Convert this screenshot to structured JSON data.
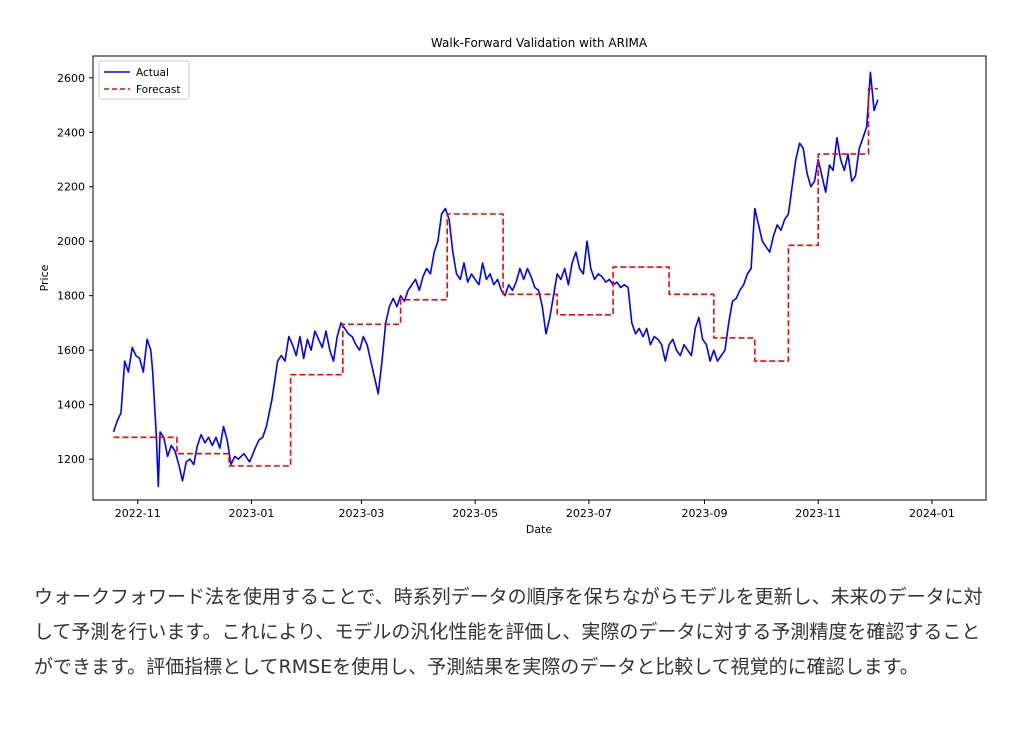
{
  "chart_data": {
    "type": "line",
    "title": "Walk-Forward Validation with ARIMA",
    "xlabel": "Date",
    "ylabel": "Price",
    "xlim": [
      "2022-10-08",
      "2024-01-30"
    ],
    "ylim": [
      1050,
      2680
    ],
    "yticks": [
      1200,
      1400,
      1600,
      1800,
      2000,
      2200,
      2400,
      2600
    ],
    "xticks": [
      {
        "date": "2022-11-01",
        "label": "2022-11"
      },
      {
        "date": "2023-01-01",
        "label": "2023-01"
      },
      {
        "date": "2023-03-01",
        "label": "2023-03"
      },
      {
        "date": "2023-05-01",
        "label": "2023-05"
      },
      {
        "date": "2023-07-01",
        "label": "2023-07"
      },
      {
        "date": "2023-09-01",
        "label": "2023-09"
      },
      {
        "date": "2023-11-01",
        "label": "2023-11"
      },
      {
        "date": "2024-01-01",
        "label": "2024-01"
      }
    ],
    "grid": false,
    "legend": "top-left",
    "series": [
      {
        "name": "Actual",
        "color": "#0000ff",
        "style": "solid",
        "points": [
          [
            "2022-10-19",
            1300
          ],
          [
            "2022-10-21",
            1340
          ],
          [
            "2022-10-23",
            1370
          ],
          [
            "2022-10-25",
            1560
          ],
          [
            "2022-10-27",
            1520
          ],
          [
            "2022-10-29",
            1610
          ],
          [
            "2022-10-31",
            1580
          ],
          [
            "2022-11-02",
            1570
          ],
          [
            "2022-11-04",
            1520
          ],
          [
            "2022-11-06",
            1640
          ],
          [
            "2022-11-08",
            1600
          ],
          [
            "2022-11-09",
            1520
          ],
          [
            "2022-11-11",
            1280
          ],
          [
            "2022-11-12",
            1100
          ],
          [
            "2022-11-13",
            1300
          ],
          [
            "2022-11-15",
            1280
          ],
          [
            "2022-11-17",
            1210
          ],
          [
            "2022-11-19",
            1250
          ],
          [
            "2022-11-21",
            1230
          ],
          [
            "2022-11-23",
            1180
          ],
          [
            "2022-11-25",
            1120
          ],
          [
            "2022-11-27",
            1190
          ],
          [
            "2022-11-29",
            1200
          ],
          [
            "2022-12-01",
            1180
          ],
          [
            "2022-12-03",
            1250
          ],
          [
            "2022-12-05",
            1290
          ],
          [
            "2022-12-07",
            1260
          ],
          [
            "2022-12-09",
            1280
          ],
          [
            "2022-12-11",
            1250
          ],
          [
            "2022-12-13",
            1280
          ],
          [
            "2022-12-15",
            1240
          ],
          [
            "2022-12-17",
            1320
          ],
          [
            "2022-12-19",
            1270
          ],
          [
            "2022-12-21",
            1180
          ],
          [
            "2022-12-23",
            1210
          ],
          [
            "2022-12-25",
            1200
          ],
          [
            "2022-12-28",
            1220
          ],
          [
            "2022-12-31",
            1190
          ],
          [
            "2023-01-03",
            1240
          ],
          [
            "2023-01-05",
            1270
          ],
          [
            "2023-01-07",
            1280
          ],
          [
            "2023-01-09",
            1320
          ],
          [
            "2023-01-12",
            1420
          ],
          [
            "2023-01-15",
            1560
          ],
          [
            "2023-01-17",
            1580
          ],
          [
            "2023-01-19",
            1560
          ],
          [
            "2023-01-21",
            1650
          ],
          [
            "2023-01-23",
            1620
          ],
          [
            "2023-01-25",
            1580
          ],
          [
            "2023-01-27",
            1650
          ],
          [
            "2023-01-29",
            1570
          ],
          [
            "2023-01-31",
            1640
          ],
          [
            "2023-02-02",
            1600
          ],
          [
            "2023-02-04",
            1670
          ],
          [
            "2023-02-06",
            1640
          ],
          [
            "2023-02-08",
            1610
          ],
          [
            "2023-02-10",
            1670
          ],
          [
            "2023-02-12",
            1600
          ],
          [
            "2023-02-14",
            1560
          ],
          [
            "2023-02-16",
            1650
          ],
          [
            "2023-02-18",
            1700
          ],
          [
            "2023-02-20",
            1680
          ],
          [
            "2023-02-22",
            1660
          ],
          [
            "2023-02-24",
            1650
          ],
          [
            "2023-02-26",
            1620
          ],
          [
            "2023-02-28",
            1600
          ],
          [
            "2023-03-02",
            1650
          ],
          [
            "2023-03-04",
            1620
          ],
          [
            "2023-03-06",
            1560
          ],
          [
            "2023-03-08",
            1500
          ],
          [
            "2023-03-10",
            1440
          ],
          [
            "2023-03-12",
            1560
          ],
          [
            "2023-03-14",
            1700
          ],
          [
            "2023-03-16",
            1760
          ],
          [
            "2023-03-18",
            1790
          ],
          [
            "2023-03-20",
            1760
          ],
          [
            "2023-03-22",
            1800
          ],
          [
            "2023-03-24",
            1780
          ],
          [
            "2023-03-26",
            1820
          ],
          [
            "2023-03-28",
            1840
          ],
          [
            "2023-03-30",
            1860
          ],
          [
            "2023-04-01",
            1820
          ],
          [
            "2023-04-03",
            1870
          ],
          [
            "2023-04-05",
            1900
          ],
          [
            "2023-04-07",
            1880
          ],
          [
            "2023-04-09",
            1960
          ],
          [
            "2023-04-11",
            2000
          ],
          [
            "2023-04-13",
            2100
          ],
          [
            "2023-04-15",
            2120
          ],
          [
            "2023-04-17",
            2080
          ],
          [
            "2023-04-19",
            1960
          ],
          [
            "2023-04-21",
            1880
          ],
          [
            "2023-04-23",
            1860
          ],
          [
            "2023-04-25",
            1920
          ],
          [
            "2023-04-27",
            1850
          ],
          [
            "2023-04-29",
            1880
          ],
          [
            "2023-05-01",
            1860
          ],
          [
            "2023-05-03",
            1840
          ],
          [
            "2023-05-05",
            1920
          ],
          [
            "2023-05-07",
            1860
          ],
          [
            "2023-05-09",
            1880
          ],
          [
            "2023-05-11",
            1840
          ],
          [
            "2023-05-13",
            1860
          ],
          [
            "2023-05-15",
            1820
          ],
          [
            "2023-05-17",
            1800
          ],
          [
            "2023-05-19",
            1840
          ],
          [
            "2023-05-21",
            1820
          ],
          [
            "2023-05-23",
            1850
          ],
          [
            "2023-05-25",
            1900
          ],
          [
            "2023-05-27",
            1860
          ],
          [
            "2023-05-29",
            1900
          ],
          [
            "2023-05-31",
            1870
          ],
          [
            "2023-06-02",
            1830
          ],
          [
            "2023-06-04",
            1820
          ],
          [
            "2023-06-06",
            1760
          ],
          [
            "2023-06-08",
            1660
          ],
          [
            "2023-06-10",
            1720
          ],
          [
            "2023-06-12",
            1800
          ],
          [
            "2023-06-14",
            1880
          ],
          [
            "2023-06-16",
            1860
          ],
          [
            "2023-06-18",
            1900
          ],
          [
            "2023-06-20",
            1840
          ],
          [
            "2023-06-22",
            1920
          ],
          [
            "2023-06-24",
            1960
          ],
          [
            "2023-06-26",
            1900
          ],
          [
            "2023-06-28",
            1880
          ],
          [
            "2023-06-30",
            2000
          ],
          [
            "2023-07-02",
            1900
          ],
          [
            "2023-07-04",
            1860
          ],
          [
            "2023-07-06",
            1880
          ],
          [
            "2023-07-08",
            1870
          ],
          [
            "2023-07-10",
            1850
          ],
          [
            "2023-07-12",
            1860
          ],
          [
            "2023-07-14",
            1840
          ],
          [
            "2023-07-16",
            1850
          ],
          [
            "2023-07-18",
            1830
          ],
          [
            "2023-07-20",
            1840
          ],
          [
            "2023-07-22",
            1830
          ],
          [
            "2023-07-24",
            1700
          ],
          [
            "2023-07-26",
            1660
          ],
          [
            "2023-07-28",
            1680
          ],
          [
            "2023-07-30",
            1650
          ],
          [
            "2023-08-01",
            1680
          ],
          [
            "2023-08-03",
            1620
          ],
          [
            "2023-08-05",
            1650
          ],
          [
            "2023-08-07",
            1640
          ],
          [
            "2023-08-09",
            1620
          ],
          [
            "2023-08-11",
            1560
          ],
          [
            "2023-08-13",
            1620
          ],
          [
            "2023-08-15",
            1640
          ],
          [
            "2023-08-17",
            1600
          ],
          [
            "2023-08-19",
            1580
          ],
          [
            "2023-08-21",
            1620
          ],
          [
            "2023-08-23",
            1600
          ],
          [
            "2023-08-25",
            1580
          ],
          [
            "2023-08-27",
            1680
          ],
          [
            "2023-08-29",
            1720
          ],
          [
            "2023-08-31",
            1640
          ],
          [
            "2023-09-02",
            1620
          ],
          [
            "2023-09-04",
            1560
          ],
          [
            "2023-09-06",
            1600
          ],
          [
            "2023-09-08",
            1560
          ],
          [
            "2023-09-10",
            1580
          ],
          [
            "2023-09-12",
            1600
          ],
          [
            "2023-09-14",
            1700
          ],
          [
            "2023-09-16",
            1780
          ],
          [
            "2023-09-18",
            1790
          ],
          [
            "2023-09-20",
            1820
          ],
          [
            "2023-09-22",
            1840
          ],
          [
            "2023-09-24",
            1880
          ],
          [
            "2023-09-26",
            1900
          ],
          [
            "2023-09-28",
            2120
          ],
          [
            "2023-09-30",
            2060
          ],
          [
            "2023-10-02",
            2000
          ],
          [
            "2023-10-04",
            1980
          ],
          [
            "2023-10-06",
            1960
          ],
          [
            "2023-10-08",
            2020
          ],
          [
            "2023-10-10",
            2060
          ],
          [
            "2023-10-12",
            2040
          ],
          [
            "2023-10-14",
            2080
          ],
          [
            "2023-10-16",
            2100
          ],
          [
            "2023-10-18",
            2200
          ],
          [
            "2023-10-20",
            2300
          ],
          [
            "2023-10-22",
            2360
          ],
          [
            "2023-10-24",
            2340
          ],
          [
            "2023-10-26",
            2250
          ],
          [
            "2023-10-28",
            2200
          ],
          [
            "2023-10-30",
            2220
          ],
          [
            "2023-11-01",
            2300
          ],
          [
            "2023-11-03",
            2240
          ],
          [
            "2023-11-05",
            2180
          ],
          [
            "2023-11-07",
            2280
          ],
          [
            "2023-11-09",
            2260
          ],
          [
            "2023-11-11",
            2380
          ],
          [
            "2023-11-13",
            2300
          ],
          [
            "2023-11-15",
            2260
          ],
          [
            "2023-11-17",
            2320
          ],
          [
            "2023-11-19",
            2220
          ],
          [
            "2023-11-21",
            2240
          ],
          [
            "2023-11-23",
            2340
          ],
          [
            "2023-11-25",
            2380
          ],
          [
            "2023-11-27",
            2420
          ],
          [
            "2023-11-29",
            2620
          ],
          [
            "2023-12-01",
            2480
          ],
          [
            "2023-12-03",
            2520
          ]
        ]
      },
      {
        "name": "Forecast",
        "color": "#ff0000",
        "style": "dashed",
        "points": [
          [
            "2022-10-19",
            1280
          ],
          [
            "2022-11-22",
            1280
          ],
          [
            "2022-11-22",
            1220
          ],
          [
            "2022-12-20",
            1220
          ],
          [
            "2022-12-20",
            1175
          ],
          [
            "2023-01-22",
            1175
          ],
          [
            "2023-01-22",
            1510
          ],
          [
            "2023-02-19",
            1510
          ],
          [
            "2023-02-19",
            1695
          ],
          [
            "2023-03-22",
            1695
          ],
          [
            "2023-03-22",
            1785
          ],
          [
            "2023-04-16",
            1785
          ],
          [
            "2023-04-16",
            2100
          ],
          [
            "2023-05-16",
            2100
          ],
          [
            "2023-05-16",
            1805
          ],
          [
            "2023-06-14",
            1805
          ],
          [
            "2023-06-14",
            1730
          ],
          [
            "2023-07-14",
            1730
          ],
          [
            "2023-07-14",
            1905
          ],
          [
            "2023-08-13",
            1905
          ],
          [
            "2023-08-13",
            1805
          ],
          [
            "2023-09-06",
            1805
          ],
          [
            "2023-09-06",
            1645
          ],
          [
            "2023-09-28",
            1645
          ],
          [
            "2023-09-28",
            1560
          ],
          [
            "2023-10-16",
            1560
          ],
          [
            "2023-10-16",
            1985
          ],
          [
            "2023-11-01",
            1985
          ],
          [
            "2023-11-01",
            2320
          ],
          [
            "2023-11-28",
            2320
          ],
          [
            "2023-11-28",
            2560
          ],
          [
            "2023-12-03",
            2560
          ]
        ]
      }
    ]
  },
  "description": "ウォークフォワード法を使用することで、時系列データの順序を保ちながらモデルを更新し、未来のデータに対して予測を行います。これにより、モデルの汎化性能を評価し、実際のデータに対する予測精度を確認することができます。評価指標としてRMSEを使用し、予測結果を実際のデータと比較して視覚的に確認します。"
}
